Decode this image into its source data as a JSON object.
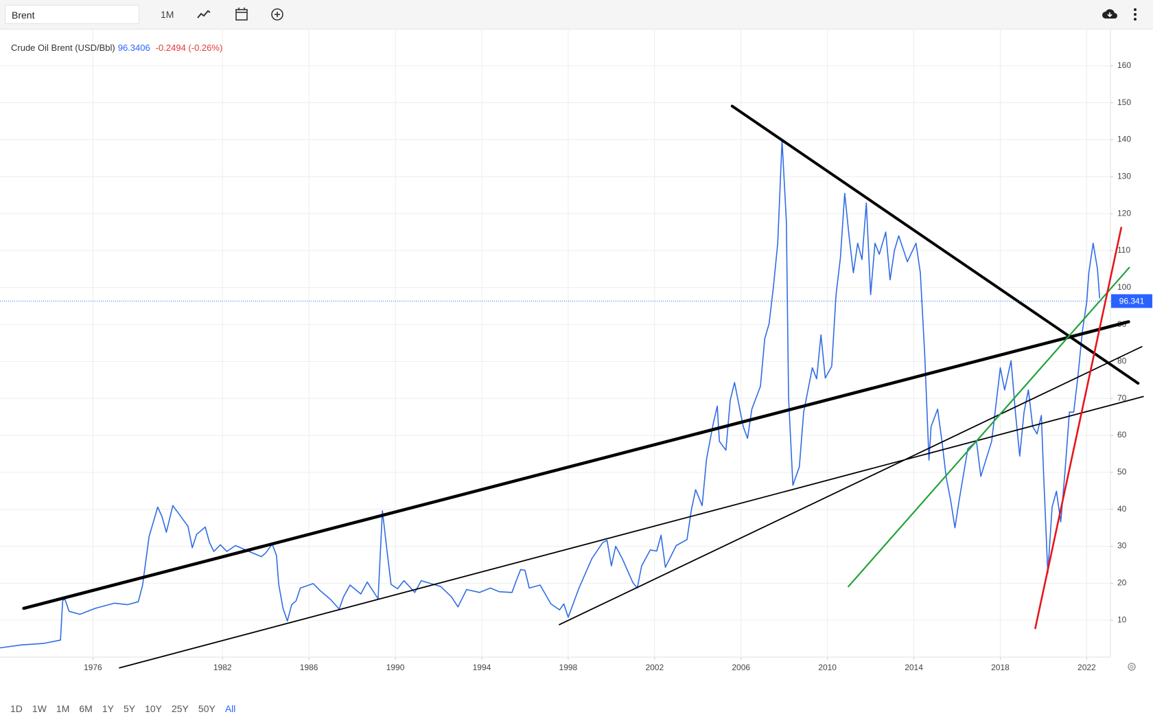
{
  "toolbar": {
    "search": "Brent",
    "interval": "1M"
  },
  "chart_data": {
    "type": "line",
    "series": [
      {
        "name": "Crude Oil Brent (USD/Bbl)",
        "color": "#2f6be6",
        "values": [
          2.5,
          3.3,
          3.7,
          4.6,
          15.2,
          15.8,
          12.4,
          11.6,
          13.2,
          14.6,
          14.2,
          15.0,
          19.5,
          32.6,
          40.6,
          38.0,
          33.8,
          41.0,
          38.6,
          35.4,
          29.6,
          33.2,
          35.2,
          31.0,
          28.6,
          30.4,
          28.6,
          30.2,
          28.4,
          27.2,
          28.2,
          30.6,
          27.5,
          19.7,
          13.2,
          9.8,
          14.2,
          15.2,
          18.7,
          19.9,
          18.1,
          15.6,
          13.0,
          16.3,
          19.5,
          17.1,
          20.3,
          15.8,
          39.6,
          29.4,
          19.7,
          18.5,
          20.7,
          17.5,
          20.7,
          19.1,
          16.3,
          13.6,
          18.3,
          17.5,
          18.7,
          17.7,
          17.5,
          20.7,
          23.7,
          23.5,
          18.7,
          19.5,
          14.4,
          12.8,
          14.4,
          10.8,
          18.7,
          26.7,
          31.0,
          31.6,
          24.7,
          30.0,
          26.7,
          20.1,
          18.7,
          24.7,
          29.0,
          28.7,
          33.0,
          24.3,
          30.2,
          31.8,
          39.8,
          45.3,
          41.0,
          53.5,
          62.8,
          67.9,
          58.4,
          56.0,
          69.5,
          74.3,
          62.4,
          59.2,
          67.1,
          73.3,
          86.2,
          90.2,
          100.1,
          112.0,
          139.8,
          117.9,
          70.3,
          46.5,
          51.5,
          66.3,
          72.3,
          78.3,
          75.3,
          87.2,
          75.5,
          78.7,
          98.1,
          108.0,
          125.5,
          114.0,
          104.0,
          112.0,
          107.6,
          122.9,
          98.1,
          112.0,
          109.0,
          115.0,
          102.1,
          110.0,
          114.0,
          107.0,
          112.0,
          104.0,
          82.2,
          53.3,
          62.4,
          67.1,
          58.4,
          48.5,
          42.5,
          35.0,
          42.5,
          56.4,
          58.4,
          48.9,
          58.4,
          68.3,
          78.3,
          72.3,
          80.2,
          66.3,
          54.4,
          66.3,
          72.3,
          62.4,
          60.4,
          65.4,
          50.5,
          22.7,
          40.6,
          44.9,
          36.6,
          50.5,
          66.3,
          66.3,
          76.3,
          88.2,
          96.1,
          104.0,
          112.0,
          105.0,
          97.1
        ]
      }
    ],
    "x": [
      1971.7,
      1972.7,
      1973.7,
      1974.5,
      1974.6,
      1974.7,
      1974.9,
      1975.4,
      1976.1,
      1977.0,
      1977.6,
      1978.1,
      1978.3,
      1978.6,
      1979.0,
      1979.2,
      1979.4,
      1979.7,
      1980.0,
      1980.4,
      1980.6,
      1980.8,
      1981.2,
      1981.4,
      1981.6,
      1981.9,
      1982.2,
      1982.6,
      1983.3,
      1983.8,
      1984.0,
      1984.3,
      1984.5,
      1984.6,
      1984.8,
      1985.0,
      1985.2,
      1985.4,
      1985.6,
      1986.2,
      1986.5,
      1987.0,
      1987.4,
      1987.6,
      1987.9,
      1988.4,
      1988.7,
      1989.2,
      1989.4,
      1989.6,
      1989.8,
      1990.1,
      1990.4,
      1990.9,
      1991.2,
      1992.1,
      1992.6,
      1992.9,
      1993.3,
      1993.9,
      1994.4,
      1994.8,
      1995.4,
      1995.6,
      1995.8,
      1996.0,
      1996.2,
      1996.7,
      1997.2,
      1997.6,
      1997.8,
      1998.0,
      1998.5,
      1999.1,
      1999.6,
      1999.8,
      2000.0,
      2000.2,
      2000.5,
      2001.0,
      2001.2,
      2001.4,
      2001.8,
      2002.1,
      2002.3,
      2002.5,
      2003.0,
      2003.5,
      2003.7,
      2003.9,
      2004.2,
      2004.4,
      2004.7,
      2004.9,
      2005.0,
      2005.3,
      2005.5,
      2005.7,
      2006.1,
      2006.3,
      2006.5,
      2006.9,
      2007.1,
      2007.3,
      2007.5,
      2007.7,
      2007.9,
      2008.1,
      2008.2,
      2008.4,
      2008.7,
      2008.9,
      2009.1,
      2009.3,
      2009.5,
      2009.7,
      2009.9,
      2010.2,
      2010.4,
      2010.6,
      2010.8,
      2011.0,
      2011.2,
      2011.4,
      2011.6,
      2011.8,
      2012.0,
      2012.2,
      2012.4,
      2012.7,
      2012.9,
      2013.1,
      2013.3,
      2013.7,
      2014.1,
      2014.3,
      2014.5,
      2014.7,
      2014.8,
      2015.1,
      2015.3,
      2015.5,
      2015.7,
      2015.9,
      2016.1,
      2016.5,
      2016.9,
      2017.1,
      2017.6,
      2017.8,
      2018.0,
      2018.2,
      2018.5,
      2018.7,
      2018.9,
      2019.1,
      2019.3,
      2019.5,
      2019.7,
      2019.9,
      2020.0,
      2020.2,
      2020.4,
      2020.6,
      2020.8,
      2021.0,
      2021.2,
      2021.4,
      2021.6,
      2021.8,
      2022.0,
      2022.1,
      2022.3,
      2022.5,
      2022.6
    ],
    "xlim": [
      1971.7,
      2023.1
    ],
    "ylim": [
      0,
      170
    ],
    "xticks": [
      1976,
      1982,
      1986,
      1990,
      1994,
      1998,
      2002,
      2006,
      2010,
      2014,
      2018,
      2022
    ],
    "yticks": [
      10,
      20,
      30,
      40,
      50,
      60,
      70,
      80,
      90,
      100,
      110,
      120,
      130,
      140,
      150,
      160
    ],
    "grid": true,
    "price_line": {
      "value": 96.3406,
      "label": "96.341",
      "color": "#2962ff"
    },
    "change": "-0.2494 (-0.26%)",
    "trendlines": [
      {
        "x": [
          1972.8,
          2023.94
        ],
        "y": [
          13.2,
          90.75
        ],
        "color": "#000000"
      },
      {
        "x": [
          2005.59,
          2024.38
        ],
        "y": [
          149.1,
          74.1
        ],
        "color": "#000000"
      },
      {
        "x": [
          1977.23,
          2024.62
        ],
        "y": [
          -2.9,
          70.5
        ],
        "color": "#000000"
      },
      {
        "x": [
          1997.59,
          2024.55
        ],
        "y": [
          8.8,
          84.0
        ],
        "color": "#000000"
      },
      {
        "x": [
          2010.97,
          2023.97
        ],
        "y": [
          19.1,
          105.4
        ],
        "color": "#1fa33a"
      },
      {
        "x": [
          2019.62,
          2023.6
        ],
        "y": [
          7.8,
          116.2
        ],
        "color": "#e8141c"
      }
    ]
  },
  "range_buttons": {
    "items": [
      "1D",
      "1W",
      "1M",
      "6M",
      "1Y",
      "5Y",
      "10Y",
      "25Y",
      "50Y",
      "All"
    ],
    "active": "All"
  }
}
